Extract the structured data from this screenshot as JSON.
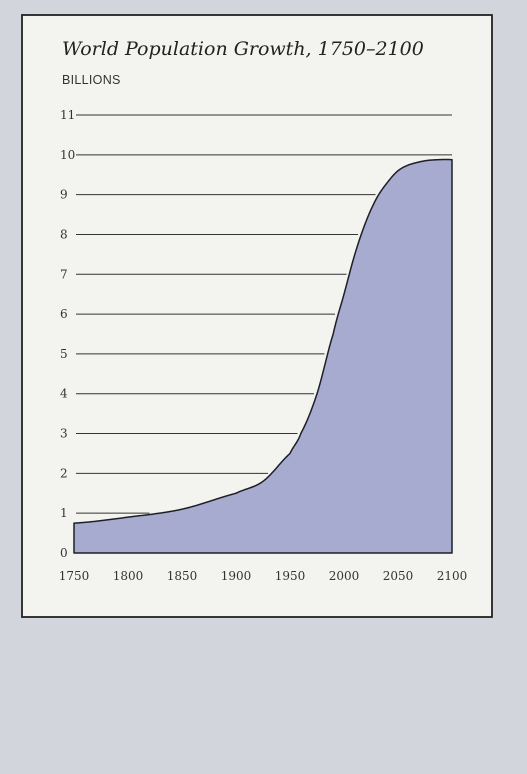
{
  "chart_data": {
    "type": "area",
    "title": "World Population Growth, 1750–2100",
    "ylabel": "BILLIONS",
    "xlabel": "",
    "xlim": [
      1750,
      2100
    ],
    "ylim": [
      0,
      11
    ],
    "x_ticks": [
      "1750",
      "1800",
      "1850",
      "1900",
      "1950",
      "2000",
      "2050",
      "2100"
    ],
    "y_ticks": [
      "0",
      "1",
      "2",
      "3",
      "4",
      "5",
      "6",
      "7",
      "8",
      "9",
      "10",
      "11"
    ],
    "grid": true,
    "colors": {
      "fill": "#a6abcf",
      "stroke": "#1e1e28",
      "panel": "#f3f3ef",
      "outer": "#d2d6dc"
    },
    "series": [
      {
        "x": [
          1750,
          1800,
          1850,
          1900,
          1925,
          1950,
          1960,
          1975,
          1990,
          2000,
          2010,
          2020,
          2030,
          2040,
          2050,
          2060,
          2075,
          2090,
          2100
        ],
        "values": [
          0.75,
          0.9,
          1.1,
          1.5,
          1.8,
          2.5,
          3.0,
          4.0,
          5.5,
          6.5,
          7.5,
          8.3,
          8.9,
          9.3,
          9.6,
          9.75,
          9.85,
          9.88,
          9.88
        ]
      }
    ]
  }
}
